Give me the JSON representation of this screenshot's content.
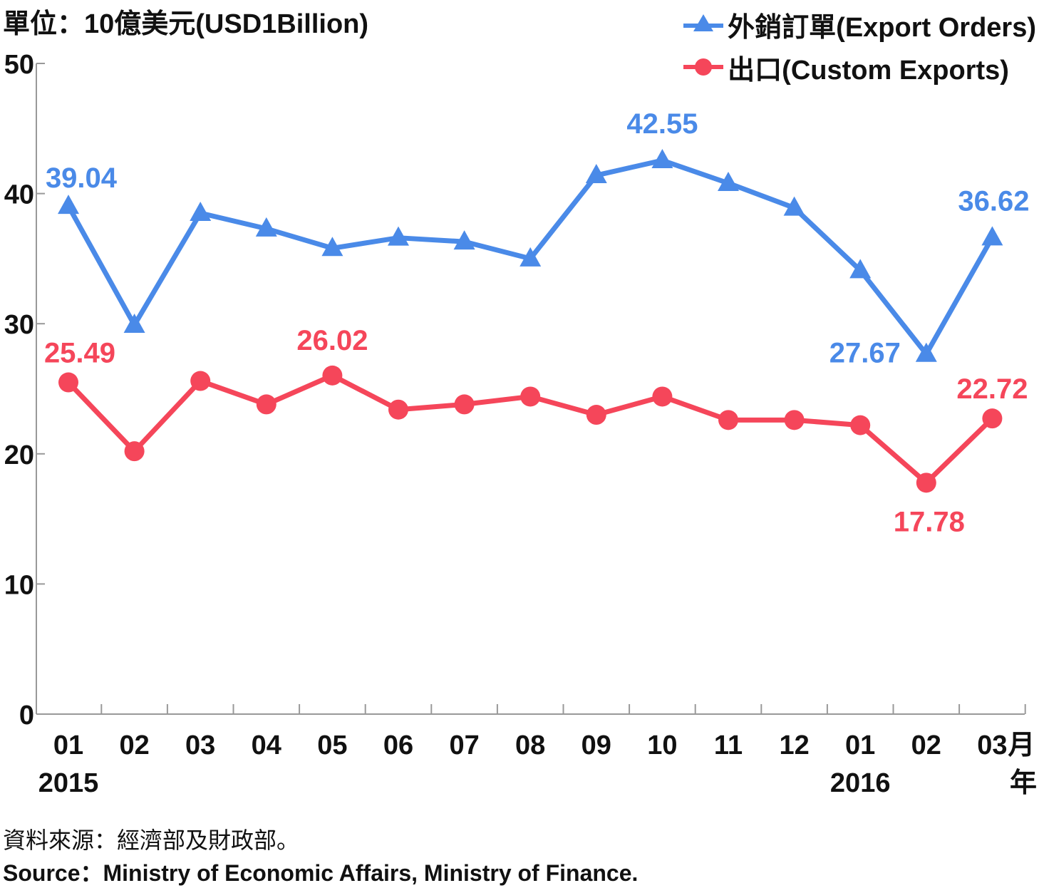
{
  "unit_label": "單位：10億美元(USD1Billion)",
  "source_zh": "資料來源：經濟部及財政部。",
  "source_en": "Source：Ministry of Economic Affairs, Ministry of Finance.",
  "colors": {
    "export_orders": "#4a8ae8",
    "custom_exports": "#f5465a"
  },
  "chart_data": {
    "type": "line",
    "categories": [
      "01",
      "02",
      "03",
      "04",
      "05",
      "06",
      "07",
      "08",
      "09",
      "10",
      "11",
      "12",
      "01",
      "02",
      "03"
    ],
    "category_suffix": "月",
    "year_axis_title": "年",
    "year_labels": [
      {
        "index": 0,
        "label": "2015"
      },
      {
        "index": 12,
        "label": "2016"
      }
    ],
    "ylim": [
      0,
      50
    ],
    "yticks": [
      0,
      10,
      20,
      30,
      40,
      50
    ],
    "grid": false,
    "legend_position": "top-right",
    "series": [
      {
        "name": "外銷訂單(Export Orders)",
        "marker": "triangle",
        "values": [
          39.04,
          29.9,
          38.5,
          37.3,
          35.8,
          36.6,
          36.3,
          35.0,
          41.4,
          42.55,
          40.8,
          38.9,
          34.1,
          27.67,
          36.62
        ],
        "labeled_points": [
          {
            "index": 0,
            "label": "39.04"
          },
          {
            "index": 9,
            "label": "42.55"
          },
          {
            "index": 13,
            "label": "27.67"
          },
          {
            "index": 14,
            "label": "36.62"
          }
        ]
      },
      {
        "name": "出口(Custom Exports)",
        "marker": "circle",
        "values": [
          25.49,
          20.2,
          25.6,
          23.8,
          26.02,
          23.4,
          23.8,
          24.4,
          23.0,
          24.4,
          22.6,
          22.6,
          22.2,
          17.78,
          22.72
        ],
        "labeled_points": [
          {
            "index": 0,
            "label": "25.49"
          },
          {
            "index": 4,
            "label": "26.02"
          },
          {
            "index": 13,
            "label": "17.78"
          },
          {
            "index": 14,
            "label": "22.72"
          }
        ]
      }
    ]
  }
}
